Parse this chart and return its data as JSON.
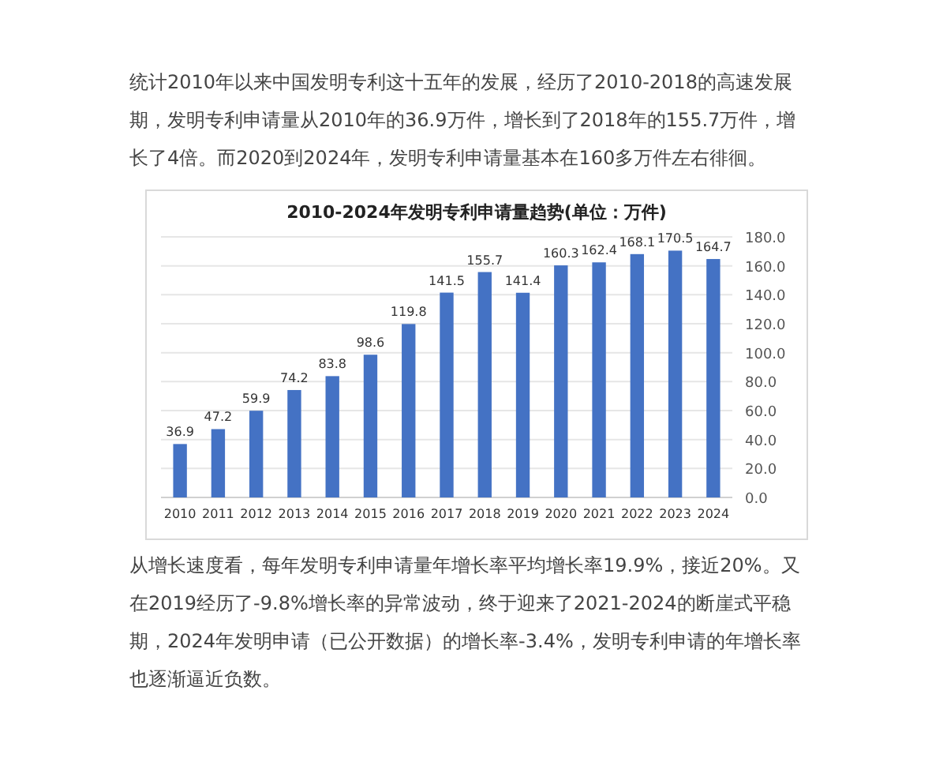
{
  "chart_data": {
    "type": "bar",
    "title": "2010-2024年发明专利申请量趋势(单位：万件)",
    "categories": [
      "2010",
      "2011",
      "2012",
      "2013",
      "2014",
      "2015",
      "2016",
      "2017",
      "2018",
      "2019",
      "2020",
      "2021",
      "2022",
      "2023",
      "2024"
    ],
    "values": [
      36.9,
      47.2,
      59.9,
      74.2,
      83.8,
      98.6,
      119.8,
      141.5,
      155.7,
      141.4,
      160.3,
      162.4,
      168.1,
      170.5,
      164.7
    ],
    "color": "#4472c4",
    "ylim": [
      0,
      180
    ],
    "yticks": [
      {
        "value": 0,
        "label": "0.0"
      },
      {
        "value": 20,
        "label": "20.0"
      },
      {
        "value": 40,
        "label": "40.0"
      },
      {
        "value": 60,
        "label": "60.0"
      },
      {
        "value": 80,
        "label": "80.0"
      },
      {
        "value": 100,
        "label": "100.0"
      },
      {
        "value": 120,
        "label": "120.0"
      },
      {
        "value": 140,
        "label": "140.0"
      },
      {
        "value": 160,
        "label": "160.0"
      },
      {
        "value": 180,
        "label": "180.0"
      }
    ],
    "grid": "y",
    "data_labels": true,
    "annotations": [
      "统计2010年以来中国发明专利这十五年的发展，经历了2010-2018的高速发展期，发明专利申请量从2010年的36.9万件，增长到了2018年的155.7万件，增长了4倍。而2020到2024年，发明专利申请量基本在160多万件左右徘徊。",
      "从增长速度看，每年发明专利申请量年增长率平均增长率19.9%，接近20%。又在2019经历了-9.8%增长率的异常波动，终于迎来了2021-2024的断崖式平稳期，2024年发明申请（已公开数据）的增长率-3.4%，发明专利申请的年增长率也逐渐逼近负数。"
    ]
  }
}
